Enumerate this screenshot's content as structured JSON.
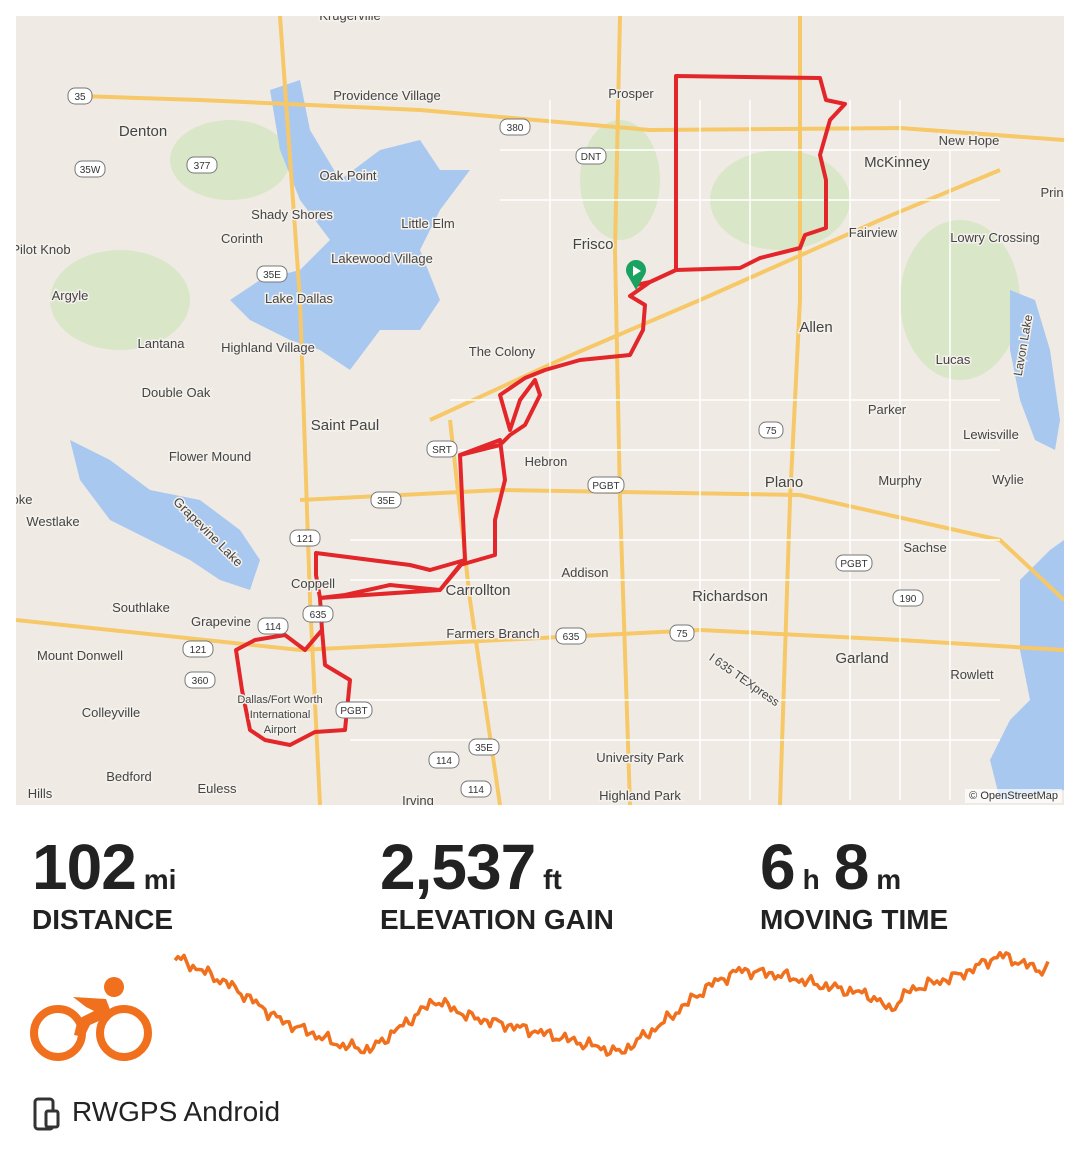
{
  "map": {
    "attribution": "© OpenStreetMap",
    "labels": [
      "Krugerville",
      "Providence Village",
      "Prosper",
      "Denton",
      "New Hope",
      "McKinney",
      "Prin",
      "Oak Point",
      "Shady Shores",
      "Little Elm",
      "Corinth",
      "Lakewood Village",
      "Frisco",
      "Fairview",
      "Lowry Crossing",
      "Pilot Knob",
      "Argyle",
      "Lake Dallas",
      "Allen",
      "Lantana",
      "Highland Village",
      "The Colony",
      "Lucas",
      "Lavon Lake",
      "Double Oak",
      "Parker",
      "Lewisville",
      "Saint Paul",
      "Flower Mound",
      "Hebron",
      "Plano",
      "Murphy",
      "Wylie",
      "oke",
      "Westlake",
      "Grapevine Lake",
      "Sachse",
      "Coppell",
      "Carrollton",
      "Addison",
      "Richardson",
      "Southlake",
      "Grapevine",
      "Farmers Branch",
      "Mount Donwell",
      "Garland",
      "Rowlett",
      "Dallas/Fort Worth",
      "International",
      "Airport",
      "Colleyville",
      "I 635 TEXpress",
      "University Park",
      "Bedford",
      "Euless",
      "Irving",
      "Highland Park",
      "Hills"
    ],
    "shields": [
      "35",
      "380",
      "377",
      "35W",
      "DNT",
      "35E",
      "SRT",
      "75",
      "35E",
      "PGBT",
      "121",
      "PGBT",
      "190",
      "635",
      "114",
      "635",
      "75",
      "121",
      "360",
      "PGBT",
      "35E",
      "114",
      "114"
    ]
  },
  "stats": [
    {
      "parts": [
        {
          "number": "102",
          "unit": "mi"
        }
      ],
      "label": "DISTANCE"
    },
    {
      "parts": [
        {
          "number": "2,537",
          "unit": "ft"
        }
      ],
      "label": "ELEVATION GAIN"
    },
    {
      "parts": [
        {
          "number": "6",
          "unit": "h"
        },
        {
          "number": "8",
          "unit": "m"
        }
      ],
      "label": "MOVING TIME"
    }
  ],
  "app": "RWGPS Android"
}
